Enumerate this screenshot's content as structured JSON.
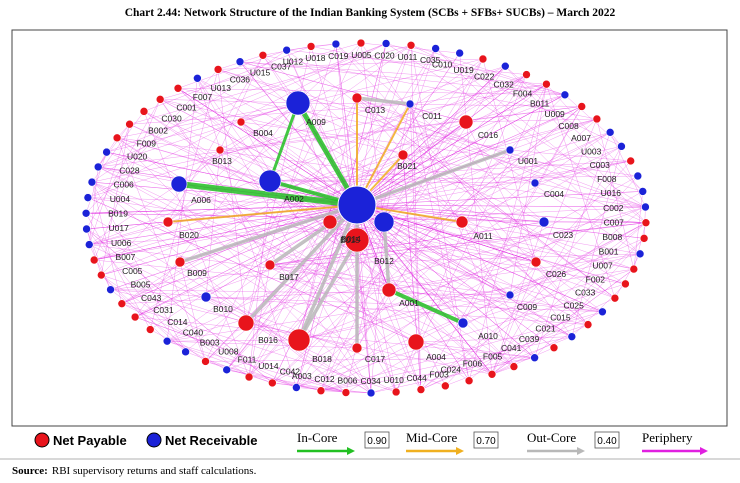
{
  "title": "Chart 2.44: Network Structure of the Indian Banking System (SCBs + SFBs+ SUCBs) – March 2022",
  "colors": {
    "payable": "#e8141c",
    "receivable": "#1b22d8"
  },
  "nodes": [
    {
      "label": "A009",
      "type": "receivable"
    },
    {
      "label": "B004",
      "type": "payable"
    },
    {
      "label": "C013",
      "type": "payable"
    },
    {
      "label": "C011",
      "type": "receivable"
    },
    {
      "label": "C016",
      "type": "payable"
    },
    {
      "label": "U001",
      "type": "receivable"
    },
    {
      "label": "B021",
      "type": "payable"
    },
    {
      "label": "B013",
      "type": "payable"
    },
    {
      "label": "A006",
      "type": "receivable"
    },
    {
      "label": "A002",
      "type": "receivable"
    },
    {
      "label": "B014",
      "type": "payable"
    },
    {
      "label": "B012",
      "type": "receivable"
    },
    {
      "label": "B015",
      "type": "payable"
    },
    {
      "label": "A011",
      "type": "payable"
    },
    {
      "label": "C004",
      "type": "receivable"
    },
    {
      "label": "C023",
      "type": "receivable"
    },
    {
      "label": "B020",
      "type": "payable"
    },
    {
      "label": "B009",
      "type": "payable"
    },
    {
      "label": "B017",
      "type": "payable"
    },
    {
      "label": "C026",
      "type": "payable"
    },
    {
      "label": "A001",
      "type": "payable"
    },
    {
      "label": "B010",
      "type": "receivable"
    },
    {
      "label": "B016",
      "type": "payable"
    },
    {
      "label": "B018",
      "type": "payable"
    },
    {
      "label": "C017",
      "type": "payable"
    },
    {
      "label": "A004",
      "type": "payable"
    },
    {
      "label": "A010",
      "type": "receivable"
    },
    {
      "label": "C009",
      "type": "receivable"
    },
    {
      "label": "C037",
      "type": "payable"
    },
    {
      "label": "U012",
      "type": "receivable"
    },
    {
      "label": "U018",
      "type": "payable"
    },
    {
      "label": "C019",
      "type": "receivable"
    },
    {
      "label": "U005",
      "type": "payable"
    },
    {
      "label": "C020",
      "type": "receivable"
    },
    {
      "label": "U011",
      "type": "payable"
    },
    {
      "label": "C035",
      "type": "receivable"
    },
    {
      "label": "C010",
      "type": "receivable"
    },
    {
      "label": "U019",
      "type": "payable"
    },
    {
      "label": "C022",
      "type": "receivable"
    },
    {
      "label": "C032",
      "type": "payable"
    },
    {
      "label": "F004",
      "type": "payable"
    },
    {
      "label": "B011",
      "type": "receivable"
    },
    {
      "label": "U009",
      "type": "payable"
    },
    {
      "label": "C008",
      "type": "payable"
    },
    {
      "label": "A007",
      "type": "receivable"
    },
    {
      "label": "U003",
      "type": "receivable"
    },
    {
      "label": "C003",
      "type": "payable"
    },
    {
      "label": "F008",
      "type": "receivable"
    },
    {
      "label": "U016",
      "type": "receivable"
    },
    {
      "label": "C002",
      "type": "receivable"
    },
    {
      "label": "C007",
      "type": "payable"
    },
    {
      "label": "B008",
      "type": "payable"
    },
    {
      "label": "B001",
      "type": "receivable"
    },
    {
      "label": "U007",
      "type": "payable"
    },
    {
      "label": "F002",
      "type": "payable"
    },
    {
      "label": "C033",
      "type": "payable"
    },
    {
      "label": "C025",
      "type": "receivable"
    },
    {
      "label": "C015",
      "type": "payable"
    },
    {
      "label": "C021",
      "type": "receivable"
    },
    {
      "label": "C039",
      "type": "payable"
    },
    {
      "label": "C041",
      "type": "receivable"
    },
    {
      "label": "F005",
      "type": "payable"
    },
    {
      "label": "F006",
      "type": "payable"
    },
    {
      "label": "C024",
      "type": "payable"
    },
    {
      "label": "F003",
      "type": "payable"
    },
    {
      "label": "C044",
      "type": "payable"
    },
    {
      "label": "U010",
      "type": "payable"
    },
    {
      "label": "C034",
      "type": "receivable"
    },
    {
      "label": "B006",
      "type": "payable"
    },
    {
      "label": "C012",
      "type": "payable"
    },
    {
      "label": "A003",
      "type": "receivable"
    },
    {
      "label": "C042",
      "type": "payable"
    },
    {
      "label": "U014",
      "type": "payable"
    },
    {
      "label": "F011",
      "type": "receivable"
    },
    {
      "label": "U008",
      "type": "payable"
    },
    {
      "label": "B003",
      "type": "receivable"
    },
    {
      "label": "C040",
      "type": "receivable"
    },
    {
      "label": "C014",
      "type": "payable"
    },
    {
      "label": "C031",
      "type": "payable"
    },
    {
      "label": "C043",
      "type": "payable"
    },
    {
      "label": "B005",
      "type": "receivable"
    },
    {
      "label": "C005",
      "type": "payable"
    },
    {
      "label": "B007",
      "type": "payable"
    },
    {
      "label": "U006",
      "type": "receivable"
    },
    {
      "label": "U017",
      "type": "receivable"
    },
    {
      "label": "B019",
      "type": "receivable"
    },
    {
      "label": "U004",
      "type": "receivable"
    },
    {
      "label": "C006",
      "type": "receivable"
    },
    {
      "label": "C028",
      "type": "receivable"
    },
    {
      "label": "U020",
      "type": "receivable"
    },
    {
      "label": "F009",
      "type": "payable"
    },
    {
      "label": "B002",
      "type": "payable"
    },
    {
      "label": "C030",
      "type": "payable"
    },
    {
      "label": "C001",
      "type": "payable"
    },
    {
      "label": "F007",
      "type": "payable"
    },
    {
      "label": "U013",
      "type": "receivable"
    },
    {
      "label": "C036",
      "type": "payable"
    },
    {
      "label": "U015",
      "type": "receivable"
    }
  ],
  "legend": {
    "payable": "Net Payable",
    "receivable": "Net Receivable",
    "edges": [
      {
        "label": "In-Core",
        "value": "0.90",
        "color": "#22c022"
      },
      {
        "label": "Mid-Core",
        "value": "0.70",
        "color": "#f0b020"
      },
      {
        "label": "Out-Core",
        "value": "0.40",
        "color": "#b8b8b8"
      },
      {
        "label": "Periphery",
        "color": "#e020e0"
      }
    ]
  },
  "source": {
    "label": "Source:",
    "text": "RBI supervisory returns and staff calculations."
  }
}
